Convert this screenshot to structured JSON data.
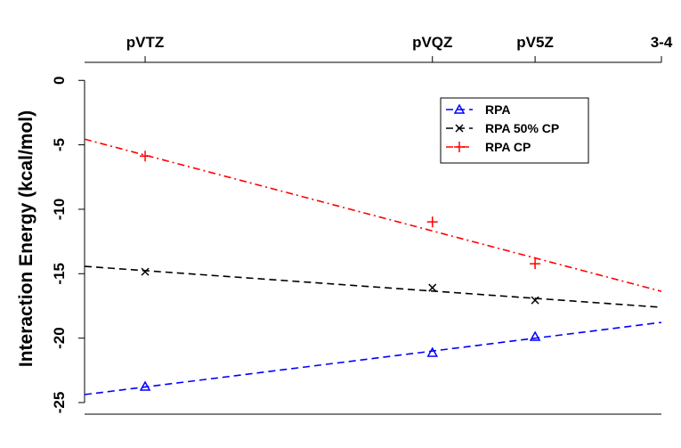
{
  "chart_data": {
    "type": "line",
    "y_label": "Interaction Energy (kcal/mol)",
    "x": [
      0.105,
      0.603,
      0.781
    ],
    "xlim": [
      0,
      1
    ],
    "xticks": [
      {
        "value": 0.105,
        "label": "pVTZ"
      },
      {
        "value": 0.603,
        "label": "pVQZ"
      },
      {
        "value": 0.781,
        "label": "pV5Z"
      },
      {
        "value": 1,
        "label": "3-4"
      }
    ],
    "ylim": [
      -25.9,
      1.4
    ],
    "yticks": [
      0,
      -5,
      -10,
      -15,
      -20,
      -25
    ],
    "legend": "top-right",
    "series": [
      {
        "name": "RPA",
        "color": "#0000ff",
        "marker": "triangle",
        "dash": "8,5",
        "values": [
          -23.76,
          -21.13,
          -19.89
        ],
        "fit": [
          -24.38,
          -18.78
        ]
      },
      {
        "name": "RPA 50% CP",
        "color": "#000000",
        "marker": "x",
        "dash": "8,5",
        "values": [
          -14.85,
          -16.09,
          -17.06
        ],
        "fit": [
          -14.43,
          -17.61
        ]
      },
      {
        "name": "RPA CP",
        "color": "#ff0000",
        "marker": "plus",
        "dash": "8,4,2,4",
        "values": [
          -5.87,
          -10.98,
          -14.23
        ],
        "fit": [
          -4.56,
          -16.37
        ]
      }
    ]
  }
}
